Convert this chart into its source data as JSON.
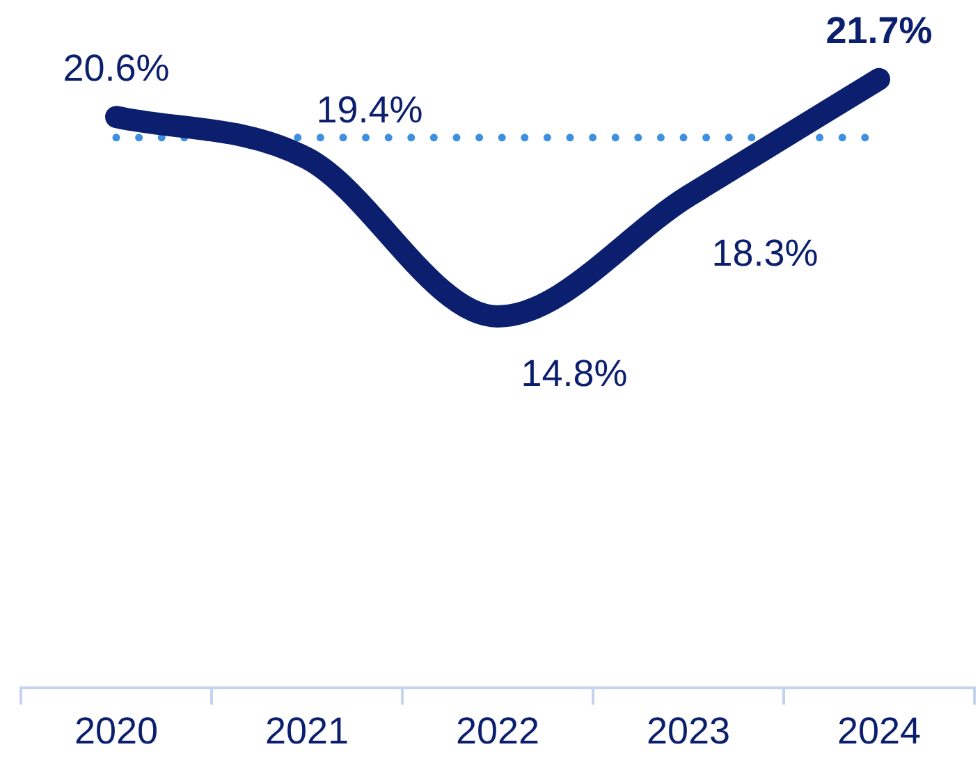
{
  "chart_data": {
    "type": "line",
    "categories": [
      "2020",
      "2021",
      "2022",
      "2023",
      "2024"
    ],
    "series": [
      {
        "color": "#0b1f6e",
        "values": [
          20.6,
          19.4,
          14.8,
          18.3,
          21.7
        ],
        "value_labels": [
          "20.6%",
          "19.4%",
          "14.8%",
          "18.3%",
          "21.7%"
        ]
      }
    ],
    "tick_labels": "x",
    "grid": false,
    "legend": false,
    "marker": "none",
    "ref_lines": [
      {
        "axis": "y",
        "value": 20,
        "color": "#3d8fe0",
        "line_style": "dotted"
      }
    ]
  }
}
